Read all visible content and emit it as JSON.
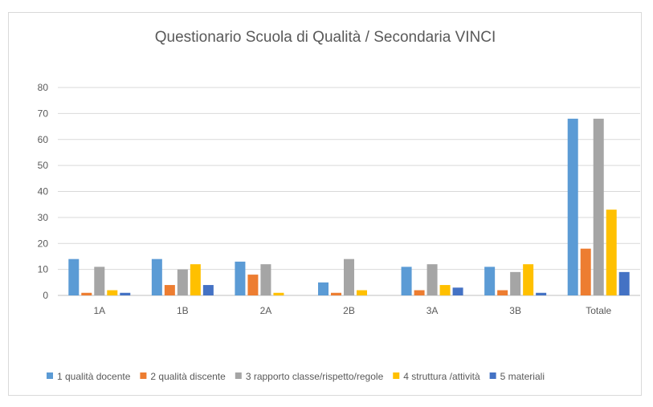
{
  "chart_data": {
    "type": "bar",
    "title": "Questionario Scuola di Qualità / Secondaria VINCI",
    "xlabel": "",
    "ylabel": "",
    "ylim": [
      0,
      80
    ],
    "yticks": [
      0,
      10,
      20,
      30,
      40,
      50,
      60,
      70,
      80
    ],
    "grid": true,
    "legend_position": "bottom",
    "categories": [
      "1A",
      "1B",
      "2A",
      "2B",
      "3A",
      "3B",
      "Totale"
    ],
    "series": [
      {
        "name": "1 qualità docente",
        "color": "#5b9bd5",
        "values": [
          14,
          14,
          13,
          5,
          11,
          11,
          68
        ]
      },
      {
        "name": "2 qualità discente",
        "color": "#ed7d31",
        "values": [
          1,
          4,
          8,
          1,
          2,
          2,
          18
        ]
      },
      {
        "name": "3 rapporto classe/rispetto/regole",
        "color": "#a5a5a5",
        "values": [
          11,
          10,
          12,
          14,
          12,
          9,
          68
        ]
      },
      {
        "name": "4 struttura /attività",
        "color": "#ffc000",
        "values": [
          2,
          12,
          1,
          2,
          4,
          12,
          33
        ]
      },
      {
        "name": "5 materiali",
        "color": "#4472c4",
        "values": [
          1,
          4,
          0,
          0,
          3,
          1,
          9
        ]
      }
    ]
  }
}
